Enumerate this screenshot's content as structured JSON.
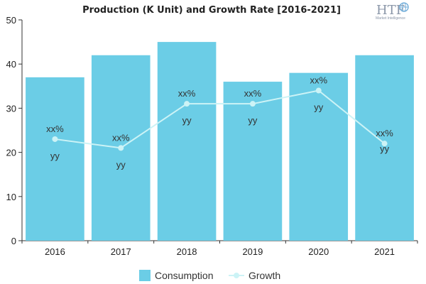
{
  "chart_data": {
    "type": "bar",
    "title": "Production (K Unit) and Growth Rate [2016-2021]",
    "categories": [
      "2016",
      "2017",
      "2018",
      "2019",
      "2020",
      "2021"
    ],
    "ylim": [
      0,
      50
    ],
    "yticks": [
      "0",
      "10",
      "20",
      "30",
      "40",
      "50"
    ],
    "grid": false,
    "legend_position": "bottom",
    "series": [
      {
        "name": "Consumption",
        "type": "bar",
        "color": "#6bcde6",
        "values": [
          37,
          42,
          45,
          36,
          38,
          42
        ],
        "labels": [
          "yy",
          "yy",
          "yy",
          "yy",
          "yy",
          "yy"
        ]
      },
      {
        "name": "Growth",
        "type": "line",
        "color": "#ccf3f6",
        "values": [
          23,
          21,
          31,
          31,
          34,
          22
        ],
        "labels": [
          "xx%",
          "xx%",
          "xx%",
          "xx%",
          "xx%",
          "xx%"
        ]
      }
    ]
  },
  "logo": {
    "text": "HTF",
    "subtext": "Market Intelligence",
    "icon": "globe-icon"
  }
}
